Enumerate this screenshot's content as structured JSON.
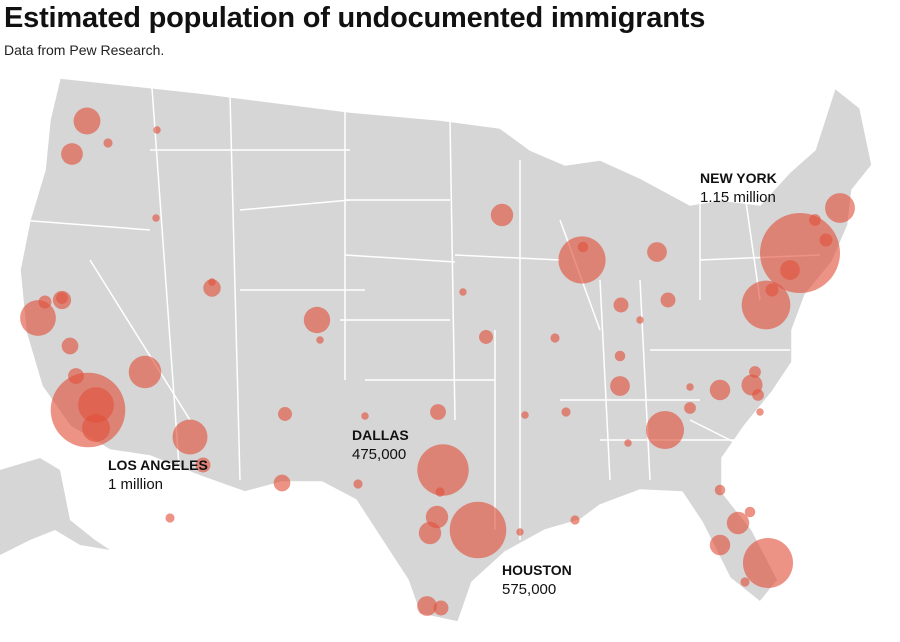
{
  "title": "Estimated population of undocumented immigrants",
  "subtitle": "Data from Pew Research.",
  "colors": {
    "land": "#d6d6d6",
    "border": "#ffffff",
    "bubble": "#e0503c"
  },
  "labels": [
    {
      "city": "NEW YORK",
      "value": "1.15 million"
    },
    {
      "city": "DALLAS",
      "value": "475,000"
    },
    {
      "city": "LOS ANGELES",
      "value": "1 million"
    },
    {
      "city": "HOUSTON",
      "value": "575,000"
    }
  ],
  "bubbles_thousands": [
    1000,
    1150,
    575,
    475,
    450,
    400,
    425,
    260,
    220,
    230,
    130,
    85,
    190,
    125,
    160,
    230,
    140,
    60,
    90,
    90,
    90,
    75,
    75,
    80,
    55,
    90,
    70,
    70,
    70,
    45,
    70,
    40,
    50,
    40,
    35,
    50,
    45,
    40,
    40,
    35,
    30,
    25,
    30,
    30,
    25,
    25,
    25,
    25,
    20,
    20,
    20,
    20,
    15,
    15,
    15,
    15,
    15,
    15,
    15,
    15,
    10,
    10,
    10,
    10,
    10,
    10,
    10,
    10,
    10,
    10,
    10,
    10
  ]
}
